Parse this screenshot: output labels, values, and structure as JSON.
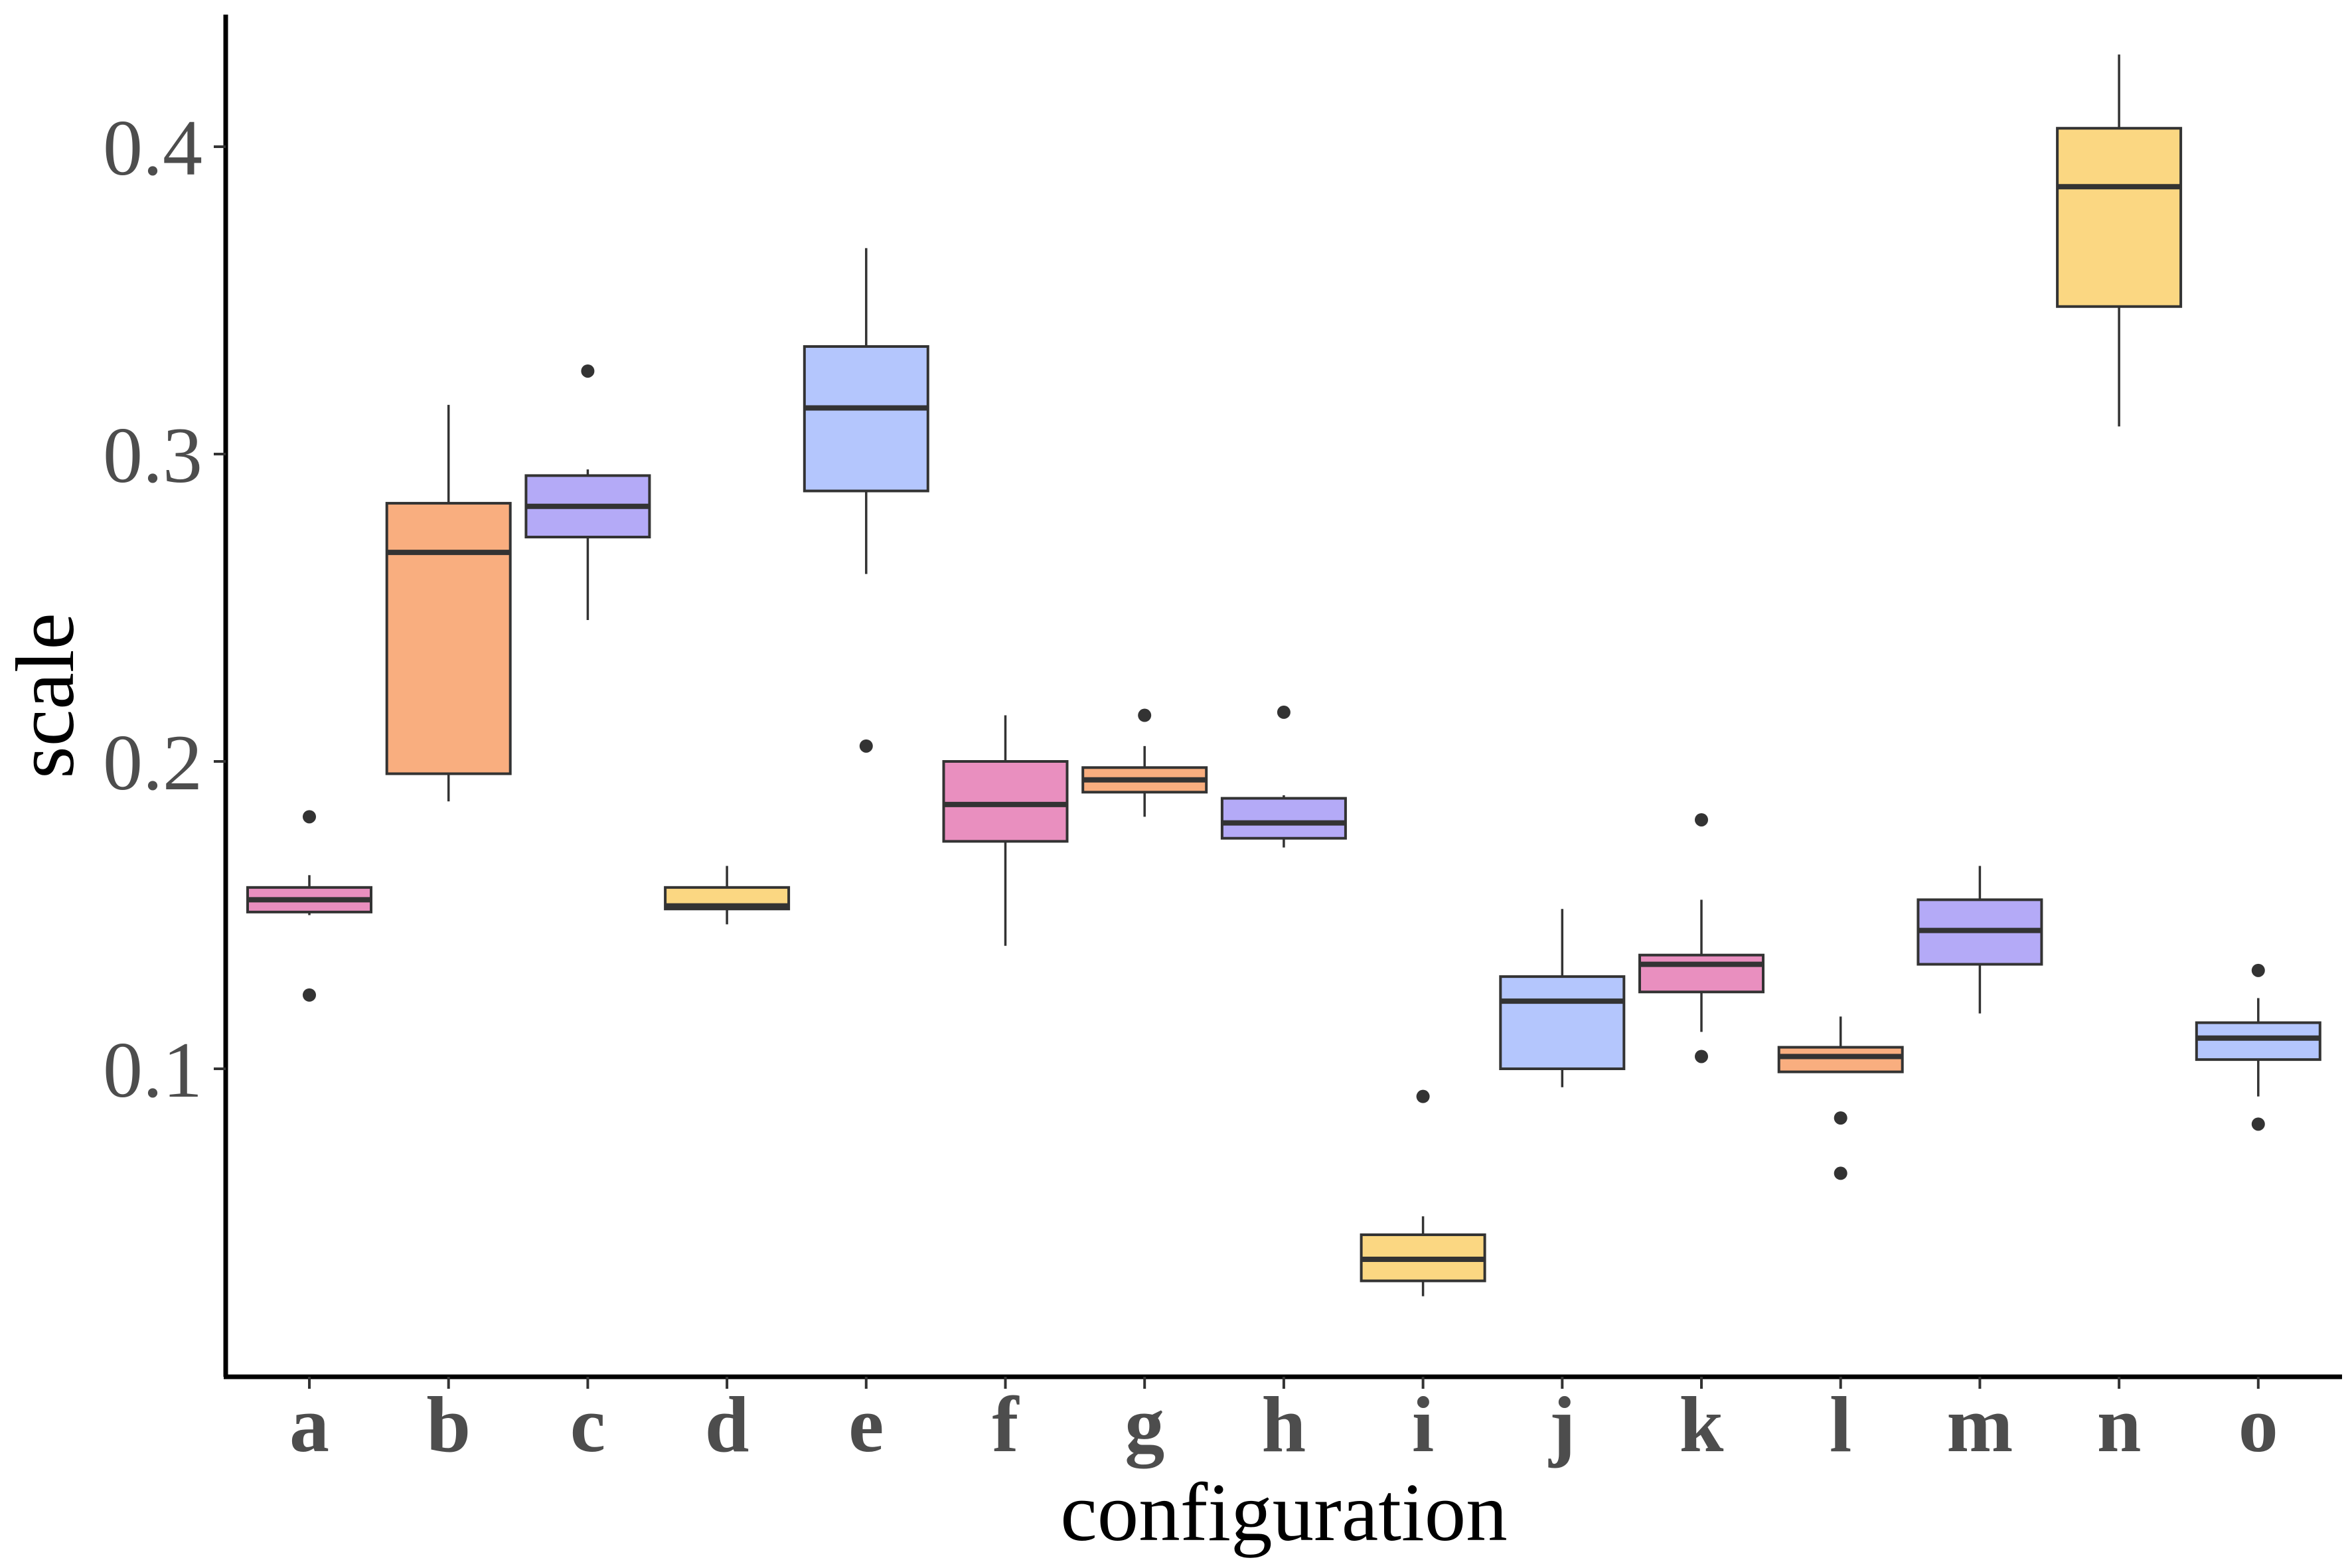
{
  "chart_data": {
    "type": "boxplot",
    "xlabel": "configuration",
    "ylabel": "scale",
    "ylim": [
      0.0,
      0.45
    ],
    "yticks": [
      0.1,
      0.2,
      0.3,
      0.4
    ],
    "ytick_labels": [
      "0.1",
      "0.2",
      "0.3",
      "0.4"
    ],
    "grid": false,
    "legend": "none",
    "categories": [
      "a",
      "b",
      "c",
      "d",
      "e",
      "f",
      "g",
      "h",
      "i",
      "j",
      "k",
      "l",
      "m",
      "n",
      "o"
    ],
    "boxes": [
      {
        "category": "a",
        "whisker_low": 0.15,
        "q1": 0.151,
        "median": 0.155,
        "q3": 0.159,
        "whisker_high": 0.163,
        "outliers": [
          0.182,
          0.124
        ],
        "color": "#e98fbf"
      },
      {
        "category": "b",
        "whisker_low": 0.187,
        "q1": 0.196,
        "median": 0.268,
        "q3": 0.284,
        "whisker_high": 0.316,
        "outliers": [],
        "color": "#f9ae7f"
      },
      {
        "category": "c",
        "whisker_low": 0.246,
        "q1": 0.273,
        "median": 0.283,
        "q3": 0.293,
        "whisker_high": 0.295,
        "outliers": [
          0.327
        ],
        "color": "#b4aaf7"
      },
      {
        "category": "d",
        "whisker_low": 0.147,
        "q1": 0.152,
        "median": 0.153,
        "q3": 0.159,
        "whisker_high": 0.166,
        "outliers": [],
        "color": "#fbd782"
      },
      {
        "category": "e",
        "whisker_low": 0.261,
        "q1": 0.288,
        "median": 0.315,
        "q3": 0.335,
        "whisker_high": 0.367,
        "outliers": [
          0.205
        ],
        "color": "#b4c6fd"
      },
      {
        "category": "f",
        "whisker_low": 0.14,
        "q1": 0.174,
        "median": 0.186,
        "q3": 0.2,
        "whisker_high": 0.215,
        "outliers": [],
        "color": "#e98fbf"
      },
      {
        "category": "g",
        "whisker_low": 0.182,
        "q1": 0.19,
        "median": 0.194,
        "q3": 0.198,
        "whisker_high": 0.205,
        "outliers": [
          0.215
        ],
        "color": "#f9ae7f"
      },
      {
        "category": "h",
        "whisker_low": 0.172,
        "q1": 0.175,
        "median": 0.18,
        "q3": 0.188,
        "whisker_high": 0.189,
        "outliers": [
          0.216
        ],
        "color": "#b4aaf7"
      },
      {
        "category": "i",
        "whisker_low": 0.026,
        "q1": 0.031,
        "median": 0.038,
        "q3": 0.046,
        "whisker_high": 0.052,
        "outliers": [
          0.091
        ],
        "color": "#fbd782"
      },
      {
        "category": "j",
        "whisker_low": 0.094,
        "q1": 0.1,
        "median": 0.122,
        "q3": 0.13,
        "whisker_high": 0.152,
        "outliers": [],
        "color": "#b4c6fd"
      },
      {
        "category": "k",
        "whisker_low": 0.112,
        "q1": 0.125,
        "median": 0.134,
        "q3": 0.137,
        "whisker_high": 0.155,
        "outliers": [
          0.181,
          0.104
        ],
        "color": "#e98fbf"
      },
      {
        "category": "l",
        "whisker_low": 0.099,
        "q1": 0.099,
        "median": 0.104,
        "q3": 0.107,
        "whisker_high": 0.117,
        "outliers": [
          0.084,
          0.066
        ],
        "color": "#f9ae7f"
      },
      {
        "category": "m",
        "whisker_low": 0.118,
        "q1": 0.134,
        "median": 0.145,
        "q3": 0.155,
        "whisker_high": 0.166,
        "outliers": [],
        "color": "#b4aaf7"
      },
      {
        "category": "n",
        "whisker_low": 0.309,
        "q1": 0.348,
        "median": 0.387,
        "q3": 0.406,
        "whisker_high": 0.43,
        "outliers": [],
        "color": "#fbd782"
      },
      {
        "category": "o",
        "whisker_low": 0.091,
        "q1": 0.103,
        "median": 0.11,
        "q3": 0.115,
        "whisker_high": 0.123,
        "outliers": [
          0.132,
          0.082
        ],
        "color": "#b4c6fd"
      }
    ]
  }
}
